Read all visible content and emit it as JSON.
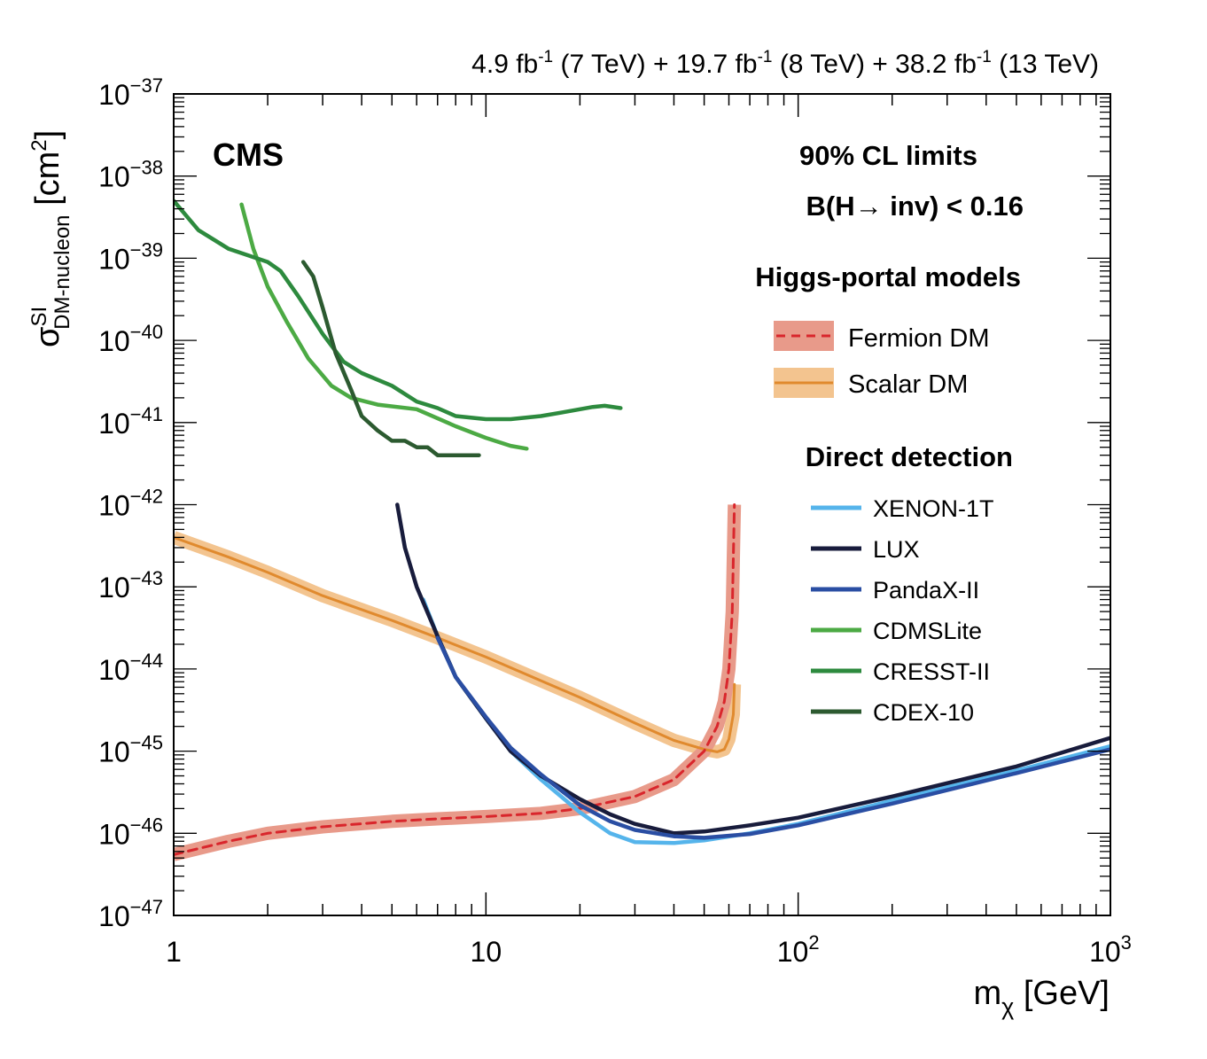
{
  "chart_data": {
    "type": "line",
    "header": "4.9 fb-1 (7 TeV) + 19.7 fb-1 (8 TeV) + 38.2 fb-1 (13 TeV)",
    "header_parts": [
      {
        "text": "4.9 fb",
        "sup": "-1",
        "after": " (7 TeV) + "
      },
      {
        "text": "19.7 fb",
        "sup": "-1",
        "after": " (8 TeV) + "
      },
      {
        "text": "38.2 fb",
        "sup": "-1",
        "after": " (13 TeV)"
      }
    ],
    "experiment": "CMS",
    "annotations": [
      "90% CL limits",
      "B(H→ inv) < 0.16"
    ],
    "xlabel": "mχ [GeV]",
    "xlabel_parts": {
      "base": "m",
      "sub": "χ",
      "unit": " [GeV]"
    },
    "ylabel": "σSI DM-nucleon [cm2]",
    "ylabel_parts": {
      "base": "σ",
      "sup": "SI",
      "sub": "DM-nucleon",
      "unit_open": " [cm",
      "unit_sup": "2",
      "unit_close": "]"
    },
    "xscale": "log",
    "yscale": "log",
    "xlim": [
      1,
      1000
    ],
    "ylim": [
      1e-47,
      1e-37
    ],
    "x_ticks": [
      {
        "value": 1,
        "label": "1"
      },
      {
        "value": 10,
        "label": "10"
      },
      {
        "value": 100,
        "label": "10",
        "exp": "2"
      },
      {
        "value": 1000,
        "label": "10",
        "exp": "3"
      }
    ],
    "y_ticks": [
      {
        "value": 1e-47,
        "label": "10",
        "exp": "−47"
      },
      {
        "value": 1e-46,
        "label": "10",
        "exp": "−46"
      },
      {
        "value": 1e-45,
        "label": "10",
        "exp": "−45"
      },
      {
        "value": 1e-44,
        "label": "10",
        "exp": "−44"
      },
      {
        "value": 1e-43,
        "label": "10",
        "exp": "−43"
      },
      {
        "value": 1e-42,
        "label": "10",
        "exp": "−42"
      },
      {
        "value": 1e-41,
        "label": "10",
        "exp": "−41"
      },
      {
        "value": 1e-40,
        "label": "10",
        "exp": "−40"
      },
      {
        "value": 1e-39,
        "label": "10",
        "exp": "−39"
      },
      {
        "value": 1e-38,
        "label": "10",
        "exp": "−38"
      },
      {
        "value": 1e-37,
        "label": "10",
        "exp": "−37"
      }
    ],
    "grid": false,
    "legend_position": "right",
    "legend_groups": [
      {
        "title": "Higgs-portal models",
        "entries": [
          "Fermion DM",
          "Scalar DM"
        ]
      },
      {
        "title": "Direct detection",
        "entries": [
          "XENON-1T",
          "LUX",
          "PandaX-II",
          "CDMSLite",
          "CRESST-II",
          "CDEX-10"
        ]
      }
    ],
    "series": [
      {
        "name": "Scalar DM",
        "group": "Higgs-portal models",
        "color": "#e08a2e",
        "band_color": "#f3c48f",
        "dash": false,
        "x": [
          1,
          1.5,
          2,
          3,
          5,
          7,
          10,
          15,
          20,
          30,
          40,
          50,
          55,
          58,
          60,
          62,
          62.5
        ],
        "y": [
          4e-43,
          2.3e-43,
          1.5e-43,
          7.8e-44,
          3.9e-44,
          2.4e-44,
          1.4e-44,
          7.2e-45,
          4.5e-45,
          2.2e-45,
          1.35e-45,
          1.05e-45,
          9.8e-46,
          1.05e-45,
          1.4e-45,
          2.8e-45,
          6.5e-45
        ]
      },
      {
        "name": "Fermion DM",
        "group": "Higgs-portal models",
        "color": "#d9262c",
        "band_color": "#e89a8a",
        "dash": true,
        "x": [
          1,
          1.5,
          2,
          3,
          5,
          7,
          10,
          15,
          20,
          30,
          40,
          50,
          55,
          58,
          60,
          61.5,
          62.5
        ],
        "y": [
          5.5e-47,
          8e-47,
          1e-46,
          1.2e-46,
          1.4e-46,
          1.5e-46,
          1.6e-46,
          1.75e-46,
          2e-46,
          2.8e-46,
          4.5e-46,
          1e-45,
          2e-45,
          4e-45,
          1e-44,
          5e-44,
          1e-42
        ]
      },
      {
        "name": "XENON-1T",
        "group": "Direct detection",
        "color": "#55b4eb",
        "band_color": null,
        "dash": false,
        "x": [
          6.3,
          7,
          8,
          10,
          12,
          15,
          20,
          25,
          30,
          40,
          50,
          70,
          100,
          200,
          500,
          1000
        ],
        "y": [
          7e-44,
          2.5e-44,
          8e-45,
          2.5e-45,
          1e-45,
          4.5e-46,
          1.8e-46,
          1e-46,
          7.8e-47,
          7.6e-47,
          8.2e-47,
          1e-46,
          1.3e-46,
          2.5e-46,
          5.8e-46,
          1.15e-45
        ]
      },
      {
        "name": "LUX",
        "group": "Direct detection",
        "color": "#181c3c",
        "band_color": null,
        "dash": false,
        "x": [
          5.2,
          5.5,
          6,
          7,
          8,
          10,
          12,
          15,
          20,
          25,
          30,
          40,
          50,
          70,
          100,
          200,
          500,
          1000
        ],
        "y": [
          1e-42,
          3e-43,
          1e-43,
          2.5e-44,
          8e-45,
          2.5e-45,
          1e-45,
          5e-46,
          2.6e-46,
          1.7e-46,
          1.3e-46,
          1e-46,
          1.05e-46,
          1.25e-46,
          1.55e-46,
          2.8e-46,
          6.5e-46,
          1.45e-45
        ]
      },
      {
        "name": "PandaX-II",
        "group": "Direct detection",
        "color": "#2a4ea3",
        "band_color": null,
        "dash": false,
        "x": [
          7,
          8,
          10,
          12,
          15,
          20,
          25,
          30,
          40,
          50,
          70,
          100,
          200,
          500,
          1000
        ],
        "y": [
          2.4e-44,
          8e-45,
          2.6e-45,
          1.1e-45,
          5.2e-46,
          2.2e-46,
          1.4e-46,
          1.1e-46,
          9.2e-47,
          8.8e-47,
          9.8e-47,
          1.25e-46,
          2.3e-46,
          5.4e-46,
          1.05e-45
        ]
      },
      {
        "name": "CDMSLite",
        "group": "Direct detection",
        "color": "#4caa44",
        "band_color": null,
        "dash": false,
        "x": [
          1.65,
          1.8,
          2,
          2.3,
          2.7,
          3.2,
          3.7,
          4.5,
          6,
          8,
          10,
          12,
          13.5
        ],
        "y": [
          4.5e-39,
          1.3e-39,
          4.5e-40,
          1.7e-40,
          6e-41,
          2.8e-41,
          2e-41,
          1.65e-41,
          1.45e-41,
          9e-42,
          6.5e-42,
          5.2e-42,
          4.8e-42
        ]
      },
      {
        "name": "CRESST-II",
        "group": "Direct detection",
        "color": "#2d8a3e",
        "band_color": null,
        "dash": false,
        "x": [
          1,
          1.2,
          1.5,
          2,
          2.2,
          2.5,
          3,
          3.5,
          4,
          5,
          6,
          7,
          8,
          10,
          12,
          15,
          18,
          22,
          24,
          27
        ],
        "y": [
          5e-39,
          2.2e-39,
          1.3e-39,
          9e-40,
          7e-40,
          3.5e-40,
          1.2e-40,
          5.5e-41,
          4e-41,
          2.8e-41,
          1.8e-41,
          1.5e-41,
          1.2e-41,
          1.1e-41,
          1.1e-41,
          1.2e-41,
          1.35e-41,
          1.55e-41,
          1.6e-41,
          1.5e-41
        ]
      },
      {
        "name": "CDEX-10",
        "group": "Direct detection",
        "color": "#2c5a30",
        "band_color": null,
        "dash": false,
        "x": [
          2.6,
          2.8,
          3,
          3.3,
          3.7,
          4,
          4.5,
          5,
          5.5,
          6,
          6.5,
          7,
          7.5,
          8,
          9,
          9.5
        ],
        "y": [
          9e-40,
          6e-40,
          2.5e-40,
          7e-41,
          2.5e-41,
          1.2e-41,
          8e-42,
          6e-42,
          6e-42,
          5e-42,
          5e-42,
          4e-42,
          4e-42,
          4e-42,
          4e-42,
          4e-42
        ]
      }
    ]
  }
}
